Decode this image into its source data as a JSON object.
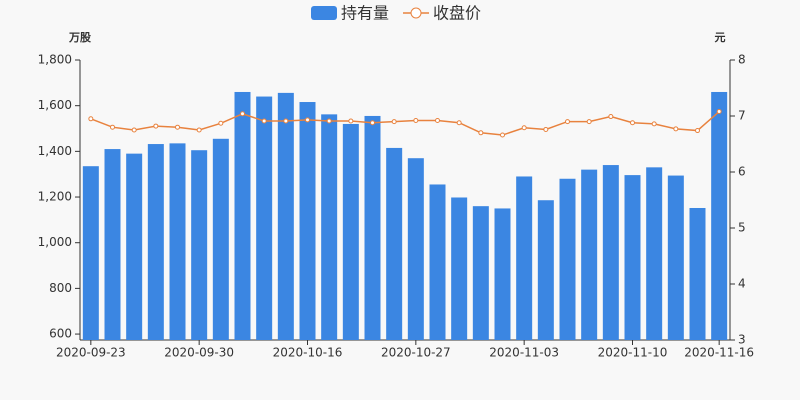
{
  "chart_data": {
    "type": "bar-line",
    "y_label": "万股",
    "y2_label": "元",
    "categories": [
      "2020-09-23",
      null,
      null,
      null,
      null,
      "2020-09-30",
      null,
      null,
      null,
      null,
      "2020-10-16",
      null,
      null,
      null,
      null,
      "2020-10-27",
      null,
      null,
      null,
      null,
      "2020-11-03",
      null,
      null,
      null,
      null,
      "2020-11-10",
      null,
      null,
      null,
      "2020-11-16"
    ],
    "series": [
      {
        "name": "持有量",
        "type": "bar",
        "color": "#3b86e2",
        "values": [
          1335,
          1410,
          1390,
          1432,
          1435,
          1405,
          1455,
          1660,
          1640,
          1656,
          1616,
          1562,
          1520,
          1555,
          1415,
          1370,
          1255,
          1198,
          1160,
          1150,
          1290,
          1186,
          1280,
          1320,
          1340,
          1296,
          1330,
          1294,
          1152,
          1660
        ]
      },
      {
        "name": "收盘价",
        "type": "line",
        "axis": "y2",
        "color": "#e8823e",
        "values": [
          6.95,
          6.8,
          6.75,
          6.82,
          6.8,
          6.75,
          6.87,
          7.04,
          6.91,
          6.91,
          6.93,
          6.91,
          6.91,
          6.88,
          6.9,
          6.92,
          6.92,
          6.88,
          6.7,
          6.66,
          6.79,
          6.76,
          6.9,
          6.9,
          6.99,
          6.88,
          6.86,
          6.77,
          6.74,
          7.08
        ]
      }
    ],
    "ylim": [
      574,
      1800
    ],
    "yticks": [
      600,
      800,
      {
        "value": 1000,
        "label": "1,000"
      },
      {
        "value": 1200,
        "label": "1,200"
      },
      {
        "value": 1400,
        "label": "1,400"
      },
      {
        "value": 1600,
        "label": "1,600"
      },
      {
        "value": 1800,
        "label": "1,800"
      }
    ],
    "y2lim": [
      3,
      8
    ],
    "y2ticks": [
      3,
      4,
      5,
      6,
      7,
      8
    ],
    "legend": "top"
  }
}
